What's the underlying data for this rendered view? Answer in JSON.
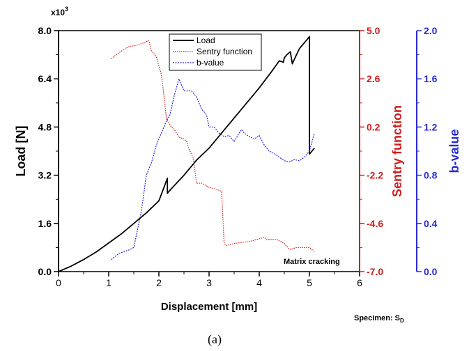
{
  "chart_data": {
    "type": "line",
    "xlabel": "Displacement [mm]",
    "xlim": [
      0,
      6
    ],
    "xticks": [
      "0",
      "1",
      "2",
      "3",
      "4",
      "5",
      "6"
    ],
    "axes": {
      "left": {
        "label": "Load [N]",
        "multiplier": "x10",
        "multiplier_exp": "3",
        "lim": [
          0,
          8
        ],
        "ticks": [
          "0.0",
          "1.6",
          "3.2",
          "4.8",
          "6.4",
          "8.0"
        ],
        "color": "#000000"
      },
      "right1": {
        "label": "Sentry function",
        "lim": [
          -7,
          5
        ],
        "ticks": [
          "-7.0",
          "-4.6",
          "-2.2",
          "0.2",
          "2.6",
          "5.0"
        ],
        "color": "#cc1f1f"
      },
      "right2": {
        "label": "b-value",
        "lim": [
          0,
          2
        ],
        "ticks": [
          "0.0",
          "0.4",
          "0.8",
          "1.2",
          "1.6",
          "2.0"
        ],
        "color": "#2a2ad8"
      }
    },
    "legend_position": "top-center",
    "series": [
      {
        "name": "Load",
        "axis": "left",
        "color": "#000000",
        "style": "solid",
        "x": [
          0,
          0.25,
          0.5,
          0.75,
          1.0,
          1.25,
          1.5,
          1.75,
          2.0,
          2.17,
          2.17,
          2.22,
          2.5,
          2.75,
          3.0,
          3.25,
          3.5,
          3.75,
          4.0,
          4.25,
          4.4,
          4.48,
          4.5,
          4.55,
          4.62,
          4.66,
          4.7,
          4.8,
          4.9,
          5.0,
          5.0,
          5.1
        ],
        "y": [
          0,
          0.18,
          0.4,
          0.65,
          0.95,
          1.25,
          1.6,
          1.95,
          2.35,
          3.1,
          2.6,
          2.7,
          3.2,
          3.7,
          4.1,
          4.6,
          5.1,
          5.6,
          6.1,
          6.65,
          7.0,
          6.95,
          7.1,
          7.2,
          7.3,
          6.9,
          7.05,
          7.4,
          7.6,
          7.8,
          3.9,
          4.1
        ]
      },
      {
        "name": "Sentry function",
        "axis": "right1",
        "color": "#cc1f1f",
        "style": "dotted",
        "x": [
          1.05,
          1.2,
          1.4,
          1.6,
          1.8,
          1.85,
          1.95,
          2.05,
          2.1,
          2.15,
          2.25,
          2.3,
          2.4,
          2.5,
          2.55,
          2.6,
          2.68,
          2.75,
          2.85,
          3.0,
          3.15,
          3.25,
          3.3,
          3.35,
          3.5,
          3.8,
          4.1,
          4.15,
          4.35,
          4.5,
          4.6,
          4.75,
          5.0,
          5.1
        ],
        "y": [
          3.6,
          3.9,
          4.2,
          4.3,
          4.5,
          4.0,
          3.7,
          2.8,
          1.8,
          0.6,
          0.2,
          0.1,
          -0.3,
          -0.4,
          -0.5,
          -0.9,
          -1.3,
          -2.6,
          -2.6,
          -2.8,
          -2.9,
          -3.0,
          -5.6,
          -5.7,
          -5.6,
          -5.5,
          -5.3,
          -5.4,
          -5.4,
          -5.6,
          -5.9,
          -5.8,
          -5.8,
          -6.0
        ]
      },
      {
        "name": "b-value",
        "axis": "right2",
        "color": "#2a2ad8",
        "style": "dotted",
        "x": [
          1.05,
          1.2,
          1.4,
          1.5,
          1.65,
          1.75,
          1.85,
          1.95,
          2.05,
          2.15,
          2.22,
          2.3,
          2.4,
          2.5,
          2.55,
          2.65,
          2.75,
          2.85,
          2.95,
          3.0,
          3.1,
          3.2,
          3.3,
          3.4,
          3.5,
          3.6,
          3.65,
          3.7,
          3.8,
          3.9,
          4.0,
          4.1,
          4.2,
          4.3,
          4.4,
          4.5,
          4.6,
          4.7,
          4.8,
          4.9,
          5.0,
          5.1
        ],
        "y": [
          0.1,
          0.15,
          0.18,
          0.2,
          0.5,
          0.8,
          0.9,
          1.05,
          1.15,
          1.25,
          1.3,
          1.45,
          1.6,
          1.5,
          1.5,
          1.5,
          1.45,
          1.35,
          1.3,
          1.2,
          1.2,
          1.15,
          1.12,
          1.13,
          1.08,
          1.15,
          1.18,
          1.15,
          1.12,
          1.1,
          1.13,
          1.05,
          1.0,
          0.98,
          0.95,
          0.92,
          0.91,
          0.93,
          0.92,
          0.95,
          1.0,
          1.15
        ]
      }
    ],
    "annotations": {
      "matrix_cracking": "Matrix cracking",
      "specimen": "Specimen: S",
      "specimen_subscript": "D"
    }
  },
  "caption": "(a)"
}
